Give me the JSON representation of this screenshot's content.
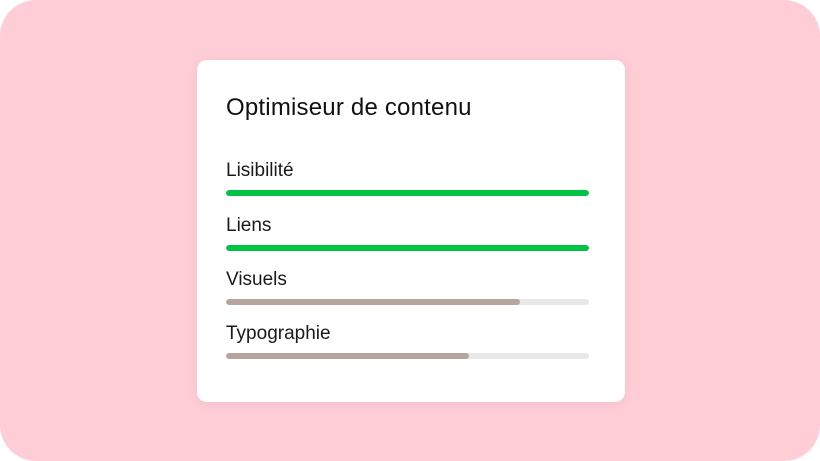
{
  "card": {
    "title": "Optimiseur de contenu",
    "metrics": [
      {
        "label": "Lisibilité",
        "progress_percent": 100,
        "color": "#00c244"
      },
      {
        "label": "Liens",
        "progress_percent": 100,
        "color": "#00c244"
      },
      {
        "label": "Visuels",
        "progress_percent": 81,
        "color": "#b5a59c"
      },
      {
        "label": "Typographie",
        "progress_percent": 67,
        "color": "#b5a59c"
      }
    ]
  },
  "colors": {
    "background": "#ffcdd6",
    "track": "#e8e8e8"
  }
}
